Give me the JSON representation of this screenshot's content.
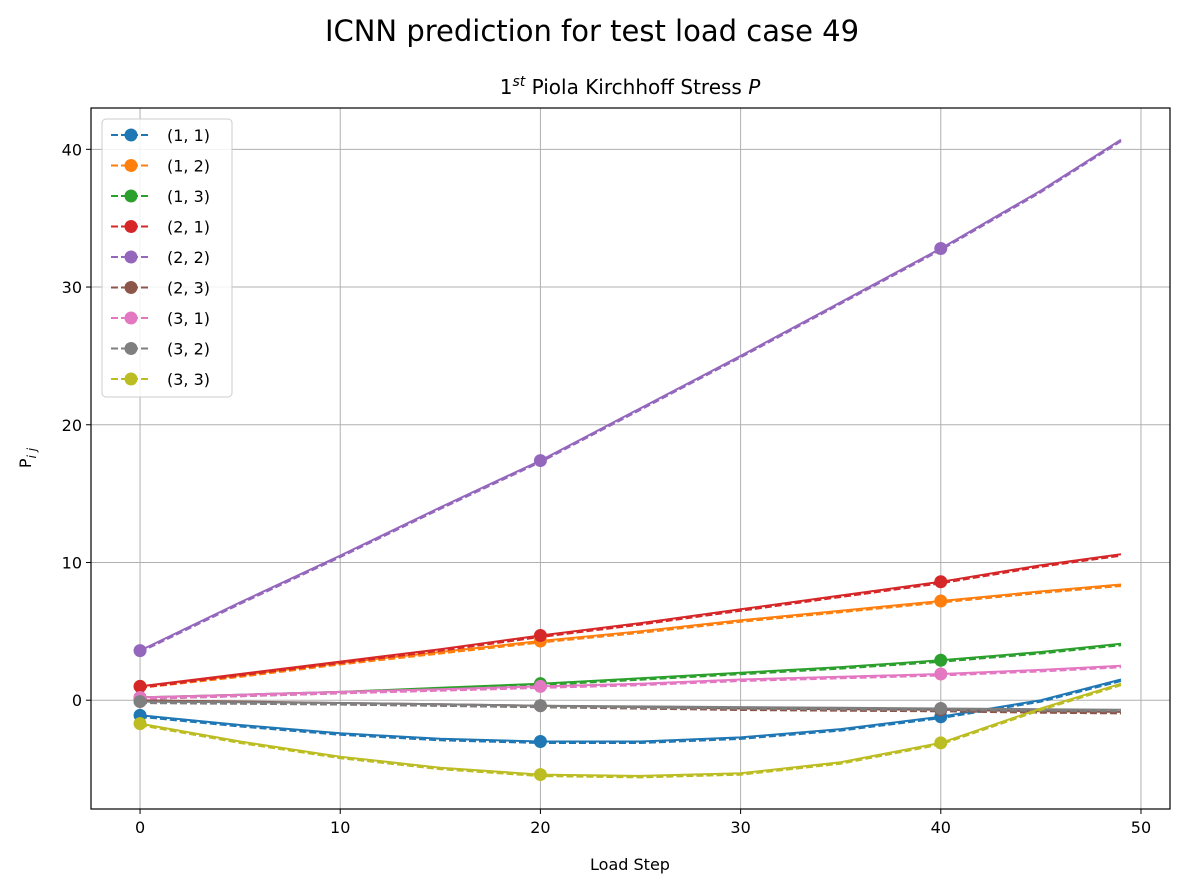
{
  "figure": {
    "suptitle": "ICNN prediction for test load case 49"
  },
  "chart_data": {
    "type": "line",
    "title_prefix": "1",
    "title_sup": "st",
    "title_main": " Piola Kirchhoff Stress ",
    "title_symbol": "P",
    "xlabel": "Load Step",
    "ylabel_main": "P",
    "ylabel_sub": "i j",
    "xlim": [
      -2.45,
      51.45
    ],
    "ylim": [
      -7.9,
      43.0
    ],
    "xticks": [
      0,
      10,
      20,
      30,
      40,
      50
    ],
    "yticks": [
      0,
      10,
      20,
      30,
      40
    ],
    "grid": true,
    "legend_position": "upper-left",
    "marker_x": [
      0,
      20,
      40
    ],
    "x": [
      0,
      5,
      10,
      15,
      20,
      25,
      30,
      35,
      40,
      45,
      49
    ],
    "series": [
      {
        "name": "(1, 1)",
        "color": "#1f77b4",
        "markers": [
          -1.1,
          -3.0,
          -1.2
        ],
        "values": [
          -1.1,
          -1.8,
          -2.4,
          -2.8,
          -3.0,
          -3.0,
          -2.7,
          -2.1,
          -1.2,
          0.0,
          1.5
        ]
      },
      {
        "name": "(1, 2)",
        "color": "#ff7f0e",
        "markers": [
          1.0,
          4.3,
          7.2
        ],
        "values": [
          1.0,
          1.8,
          2.7,
          3.5,
          4.3,
          5.0,
          5.8,
          6.5,
          7.2,
          7.9,
          8.4
        ]
      },
      {
        "name": "(1, 3)",
        "color": "#2ca02c",
        "markers": [
          0.2,
          1.2,
          2.9
        ],
        "values": [
          0.2,
          0.4,
          0.6,
          0.9,
          1.2,
          1.6,
          2.0,
          2.4,
          2.9,
          3.5,
          4.1
        ]
      },
      {
        "name": "(2, 1)",
        "color": "#d62728",
        "markers": [
          1.0,
          4.7,
          8.6
        ],
        "values": [
          1.0,
          1.9,
          2.8,
          3.7,
          4.7,
          5.6,
          6.6,
          7.6,
          8.6,
          9.8,
          10.6
        ]
      },
      {
        "name": "(2, 2)",
        "color": "#9467bd",
        "markers": [
          3.6,
          17.4,
          32.8
        ],
        "values": [
          3.6,
          7.1,
          10.5,
          14.0,
          17.4,
          21.2,
          25.0,
          28.9,
          32.8,
          37.0,
          40.7
        ]
      },
      {
        "name": "(2, 3)",
        "color": "#8c564b",
        "markers": [
          0.0,
          -0.4,
          -0.7
        ],
        "values": [
          0.0,
          -0.1,
          -0.2,
          -0.3,
          -0.4,
          -0.5,
          -0.6,
          -0.65,
          -0.7,
          -0.8,
          -0.85
        ]
      },
      {
        "name": "(3, 1)",
        "color": "#e377c2",
        "markers": [
          0.2,
          1.0,
          1.9
        ],
        "values": [
          0.2,
          0.4,
          0.6,
          0.8,
          1.0,
          1.2,
          1.5,
          1.7,
          1.9,
          2.2,
          2.5
        ]
      },
      {
        "name": "(3, 2)",
        "color": "#7f7f7f",
        "markers": [
          -0.1,
          -0.4,
          -0.6
        ],
        "values": [
          -0.1,
          -0.15,
          -0.2,
          -0.3,
          -0.4,
          -0.45,
          -0.5,
          -0.55,
          -0.6,
          -0.65,
          -0.7
        ]
      },
      {
        "name": "(3, 3)",
        "color": "#bcbd22",
        "markers": [
          -1.7,
          -5.4,
          -3.1
        ],
        "values": [
          -1.7,
          -3.0,
          -4.1,
          -4.9,
          -5.4,
          -5.5,
          -5.3,
          -4.5,
          -3.1,
          -0.6,
          1.2
        ]
      }
    ]
  }
}
